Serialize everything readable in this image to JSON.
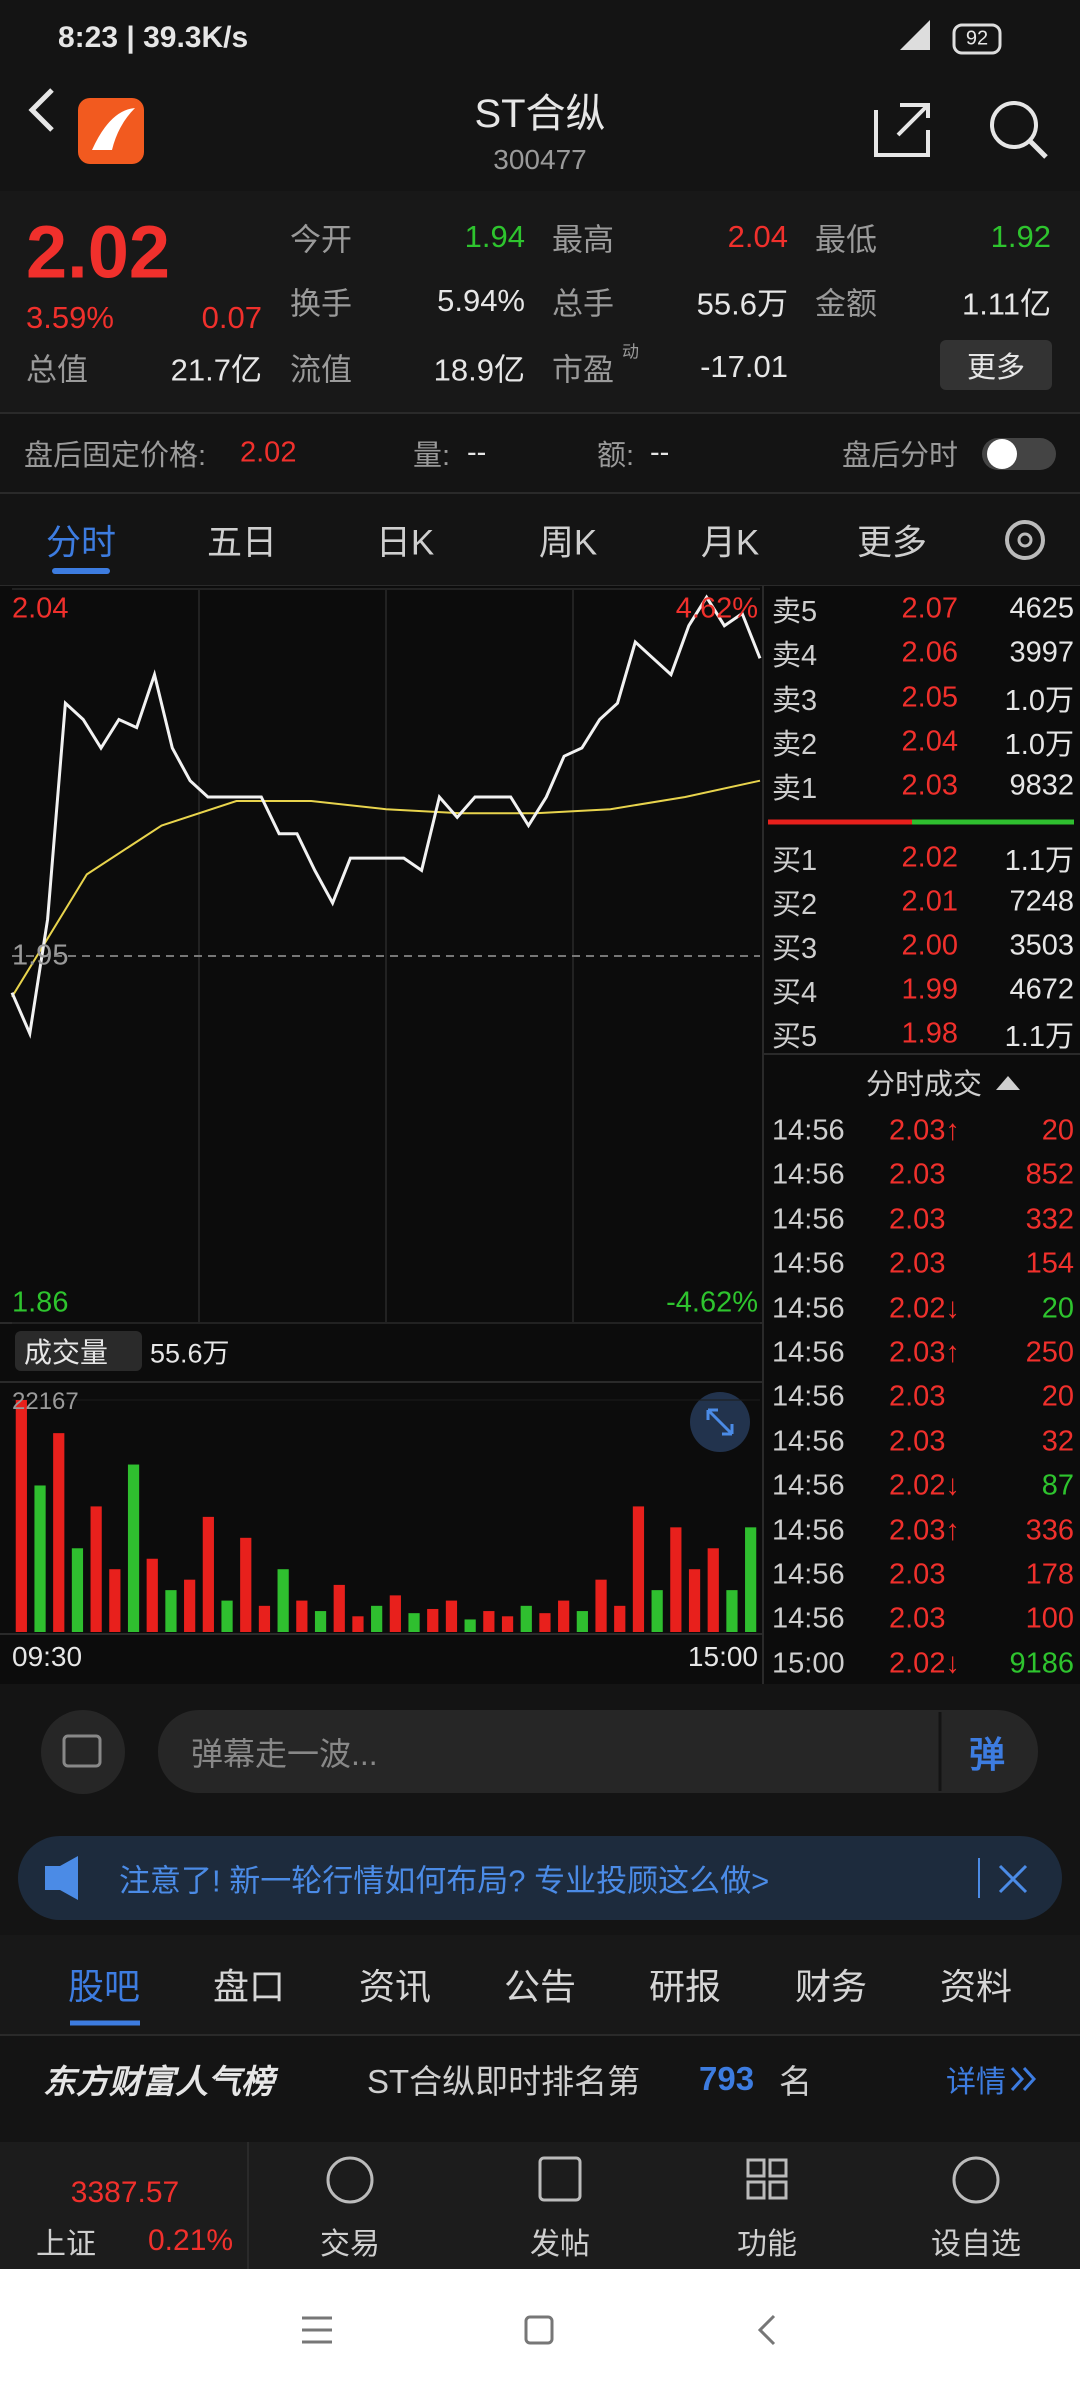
{
  "status_bar": {
    "time": "8:23 | 39.3K/s",
    "battery": "92"
  },
  "header": {
    "title": "ST合纵",
    "code": "300477"
  },
  "quote": {
    "price": "2.02",
    "change_pct": "3.59%",
    "change": "0.07",
    "stats": [
      [
        {
          "label": "今开",
          "value": "1.94",
          "color": "#2ec42e"
        },
        {
          "label": "最高",
          "value": "2.04",
          "color": "#f0302c"
        },
        {
          "label": "最低",
          "value": "1.92",
          "color": "#2ec42e"
        }
      ],
      [
        {
          "label": "换手",
          "value": "5.94%"
        },
        {
          "label": "总手",
          "value": "55.6万"
        },
        {
          "label": "金额",
          "value": "1.11亿"
        }
      ],
      [
        {
          "label": "总值",
          "value": "21.7亿"
        },
        {
          "label": "流值",
          "value": "18.9亿"
        },
        {
          "label": "市盈",
          "value": "-17.01"
        }
      ]
    ],
    "pe_sup": "动",
    "more": "更多"
  },
  "after_hours": {
    "label": "盘后固定价格:",
    "price": "2.02",
    "vol_label": "量:",
    "vol": "--",
    "amt_label": "额:",
    "amt": "--",
    "toggle": "盘后分时"
  },
  "tabs": [
    "分时",
    "五日",
    "日K",
    "周K",
    "月K",
    "更多"
  ],
  "chart": {
    "ylim": [
      1.86,
      2.04
    ],
    "yticks": [
      2.04,
      1.95,
      1.86
    ],
    "pct_ticks": [
      {
        "value": 2.04,
        "label": "4.62%"
      },
      {
        "value": 1.86,
        "label": "-4.62%"
      }
    ],
    "price_color": "#f2f2f2",
    "avg_color": "#e8d44d",
    "price": [
      1.941,
      1.931,
      1.959,
      2.012,
      2.008,
      2.001,
      2.008,
      2.006,
      2.019,
      2.001,
      1.993,
      1.989,
      1.989,
      1.989,
      1.989,
      1.98,
      1.98,
      1.971,
      1.963,
      1.974,
      1.974,
      1.974,
      1.974,
      1.971,
      1.989,
      1.984,
      1.989,
      1.989,
      1.989,
      1.982,
      1.989,
      1.999,
      2.001,
      2.008,
      2.012,
      2.027,
      2.023,
      2.019,
      2.031,
      2.038,
      2.031,
      2.034,
      2.023
    ],
    "avg": [
      1.94,
      1.97,
      1.982,
      1.988,
      1.988,
      1.986,
      1.985,
      1.985,
      1.986,
      1.989,
      1.993
    ]
  },
  "volume": {
    "label": "成交量",
    "total": "55.6万",
    "ylim": [
      0,
      22167
    ],
    "yticks": [
      22167
    ],
    "times": [
      "09:30",
      "15:00"
    ],
    "values": [
      22167,
      14000,
      19000,
      8000,
      12000,
      6000,
      16000,
      7000,
      4000,
      5000,
      11000,
      3000,
      9000,
      2500,
      6000,
      3000,
      2000,
      4500,
      1500,
      2500,
      3500,
      1800,
      2200,
      3000,
      1200,
      2000,
      1500,
      2500,
      1800,
      3000,
      2000,
      5000,
      2500,
      12000,
      4000,
      10000,
      6000,
      8000,
      4000,
      10000
    ],
    "colors": [
      "#e8201c",
      "#2fbf2f",
      "#e8201c",
      "#2fbf2f",
      "#e8201c",
      "#e8201c",
      "#2fbf2f",
      "#e8201c",
      "#2fbf2f",
      "#e8201c",
      "#e8201c",
      "#2fbf2f",
      "#e8201c",
      "#e8201c",
      "#2fbf2f",
      "#e8201c",
      "#2fbf2f",
      "#e8201c",
      "#e8201c",
      "#2fbf2f",
      "#e8201c",
      "#2fbf2f",
      "#e8201c",
      "#e8201c",
      "#2fbf2f",
      "#e8201c",
      "#e8201c",
      "#2fbf2f",
      "#e8201c",
      "#e8201c",
      "#2fbf2f",
      "#e8201c",
      "#e8201c",
      "#e8201c",
      "#2fbf2f",
      "#e8201c",
      "#e8201c",
      "#e8201c",
      "#2fbf2f",
      "#2fbf2f"
    ]
  },
  "order_book": {
    "sells": [
      {
        "label": "卖5",
        "price": "2.07",
        "vol": "4625"
      },
      {
        "label": "卖4",
        "price": "2.06",
        "vol": "3997"
      },
      {
        "label": "卖3",
        "price": "2.05",
        "vol": "1.0万"
      },
      {
        "label": "卖2",
        "price": "2.04",
        "vol": "1.0万"
      },
      {
        "label": "卖1",
        "price": "2.03",
        "vol": "9832"
      }
    ],
    "buys": [
      {
        "label": "买1",
        "price": "2.02",
        "vol": "1.1万"
      },
      {
        "label": "买2",
        "price": "2.01",
        "vol": "7248"
      },
      {
        "label": "买3",
        "price": "2.00",
        "vol": "3503"
      },
      {
        "label": "买4",
        "price": "1.99",
        "vol": "4672"
      },
      {
        "label": "买5",
        "price": "1.98",
        "vol": "1.1万"
      }
    ]
  },
  "trades": {
    "title": "分时成交",
    "rows": [
      [
        "14:56",
        "2.03↑",
        "20",
        "#f0302c"
      ],
      [
        "14:56",
        "2.03",
        "852",
        "#f0302c"
      ],
      [
        "14:56",
        "2.03",
        "332",
        "#f0302c"
      ],
      [
        "14:56",
        "2.03",
        "154",
        "#f0302c"
      ],
      [
        "14:56",
        "2.02↓",
        "20",
        "#2ec42e"
      ],
      [
        "14:56",
        "2.03↑",
        "250",
        "#f0302c"
      ],
      [
        "14:56",
        "2.03",
        "20",
        "#f0302c"
      ],
      [
        "14:56",
        "2.03",
        "32",
        "#f0302c"
      ],
      [
        "14:56",
        "2.02↓",
        "87",
        "#2ec42e"
      ],
      [
        "14:56",
        "2.03↑",
        "336",
        "#f0302c"
      ],
      [
        "14:56",
        "2.03",
        "178",
        "#f0302c"
      ],
      [
        "14:56",
        "2.03",
        "100",
        "#f0302c"
      ],
      [
        "15:00",
        "2.02↓",
        "9186",
        "#2ec42e"
      ]
    ]
  },
  "comment": {
    "placeholder": "弹幕走一波...",
    "button": "弹"
  },
  "notice": {
    "text": "注意了! 新一轮行情如何布局? 专业投顾这么做>"
  },
  "sub_tabs": [
    "股吧",
    "盘口",
    "资讯",
    "公告",
    "研报",
    "财务",
    "资料"
  ],
  "ranking": {
    "brand": "东方财富人气榜",
    "text": "ST合纵即时排名第",
    "rank": "793",
    "suffix": "名",
    "detail": "详情"
  },
  "bottom_nav": {
    "index_value": "3387.57",
    "index_name": "上证",
    "index_change": "0.21%",
    "items": [
      "交易",
      "发帖",
      "功能",
      "设自选"
    ]
  }
}
